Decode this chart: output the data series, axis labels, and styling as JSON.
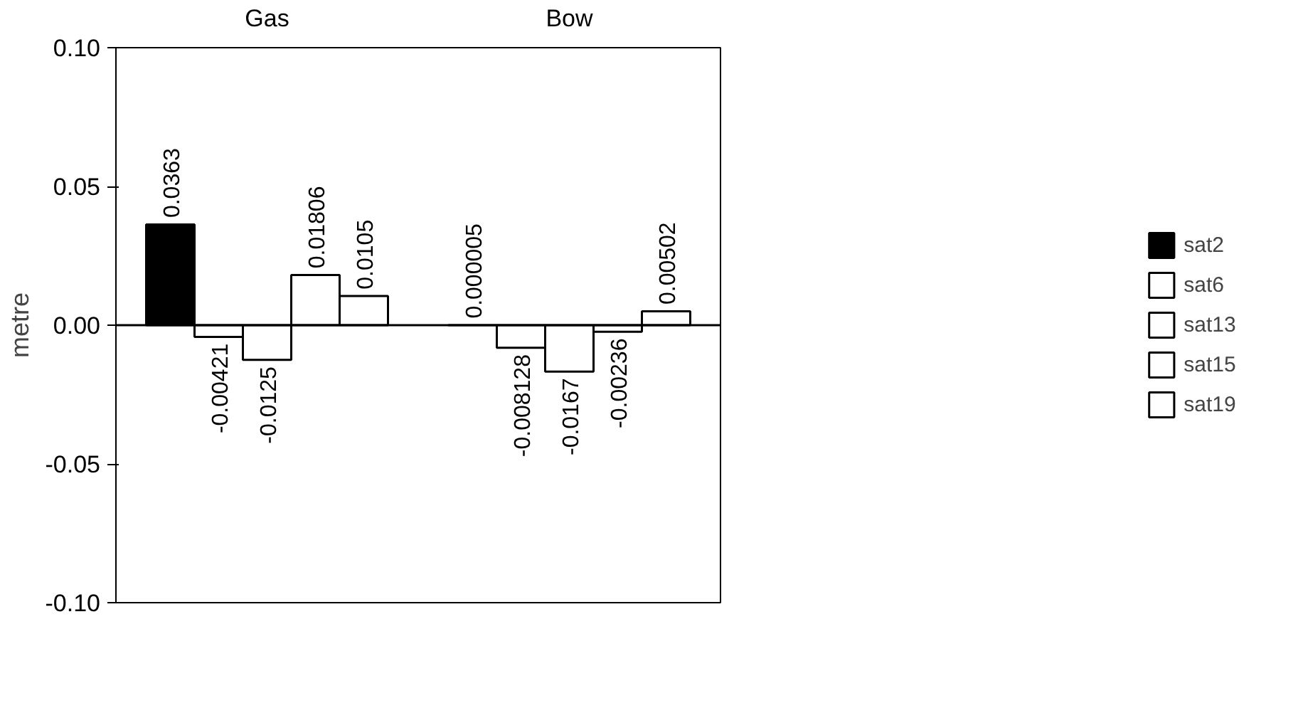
{
  "chart_data": {
    "type": "bar",
    "ylabel": "metre",
    "categories": [
      "Gas",
      "Bow"
    ],
    "series": [
      {
        "name": "sat2",
        "color": "#000000",
        "values": [
          0.0363,
          5e-06
        ],
        "value_labels": [
          "0.0363",
          "0.000005"
        ]
      },
      {
        "name": "sat6",
        "color": "#ffffff",
        "values": [
          -0.00421,
          -0.008128
        ],
        "value_labels": [
          "-0.00421",
          "-0.008128"
        ]
      },
      {
        "name": "sat13",
        "color": "#ffffff",
        "values": [
          -0.0125,
          -0.0167
        ],
        "value_labels": [
          "-0.0125",
          "-0.0167"
        ]
      },
      {
        "name": "sat15",
        "color": "#ffffff",
        "values": [
          0.01806,
          -0.00236
        ],
        "value_labels": [
          "0.01806",
          "-0.00236"
        ]
      },
      {
        "name": "sat19",
        "color": "#ffffff",
        "values": [
          0.0105,
          0.00502
        ],
        "value_labels": [
          "0.0105",
          "0.00502"
        ]
      }
    ],
    "ylim": [
      -0.1,
      0.1
    ],
    "yticks": [
      {
        "value": -0.1,
        "label": "-0.10"
      },
      {
        "value": -0.05,
        "label": "-0.05"
      },
      {
        "value": 0,
        "label": "0.00"
      },
      {
        "value": 0.05,
        "label": "0.05"
      },
      {
        "value": 0.1,
        "label": "0.10"
      }
    ],
    "ref_lines": [
      {
        "axis": "y",
        "value": 0
      }
    ],
    "grid": false,
    "legend": "right"
  }
}
